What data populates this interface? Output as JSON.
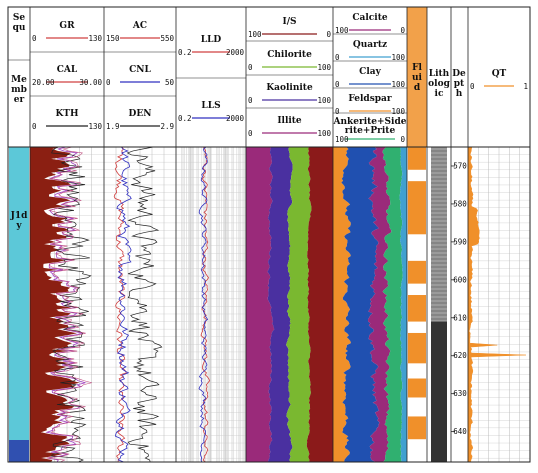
{
  "header": {
    "sequ": "Se\nqu",
    "member": "Me\nmb\ner",
    "fluid": "Fl\nui\nd",
    "lithologic": "Lith\nolog\nic",
    "depth": "De\npt\nh"
  },
  "zone_label": "J1d\ny",
  "curves_left": [
    {
      "name": "GR",
      "min": "0",
      "max": "130",
      "color": "#d04040"
    },
    {
      "name": "CAL",
      "min": "20.00",
      "max": "30.00",
      "color": "#d04040"
    },
    {
      "name": "KTH",
      "min": "0",
      "max": "130",
      "color": "#222222"
    }
  ],
  "curves_mid": [
    {
      "name": "AC",
      "min": "150",
      "max": "550",
      "color": "#d04040"
    },
    {
      "name": "CNL",
      "min": "0",
      "max": "50",
      "color": "#3030c0"
    },
    {
      "name": "DEN",
      "min": "1.9",
      "max": "2.9",
      "color": "#222222"
    }
  ],
  "curves_res": [
    {
      "name": "LLD",
      "min": "0.2",
      "max": "2000",
      "color": "#d04040"
    },
    {
      "name": "LLS",
      "min": "0.2",
      "max": "2000",
      "color": "#3030c0"
    }
  ],
  "clay_minerals": [
    {
      "name": "I/S",
      "min": "100",
      "max": "0",
      "color": "#8b1a1a"
    },
    {
      "name": "Chilorite",
      "min": "0",
      "max": "100",
      "color": "#7ab830"
    },
    {
      "name": "Kaolinite",
      "min": "0",
      "max": "100",
      "color": "#4a30a0"
    },
    {
      "name": "Illite",
      "min": "0",
      "max": "100",
      "color": "#9a2a7a"
    }
  ],
  "minerals": [
    {
      "name": "Calcite",
      "min": "100",
      "max": "0",
      "color": "#9a2a7a"
    },
    {
      "name": "Quartz",
      "min": "0",
      "max": "100",
      "color": "#40a0d0"
    },
    {
      "name": "Clay",
      "min": "0",
      "max": "100",
      "color": "#2050b0"
    },
    {
      "name": "Feldspar",
      "min": "0",
      "max": "100",
      "color": "#f0902a"
    },
    {
      "name": "Ankerite+Siderite+Prite",
      "min": "100",
      "max": "0",
      "color": "#30b070"
    }
  ],
  "qt": {
    "name": "QT",
    "min": "0",
    "max": "1",
    "color": "#f0902a"
  },
  "chart_data": {
    "type": "line",
    "depth_ticks": [
      570,
      580,
      590,
      600,
      610,
      620,
      630,
      640
    ],
    "depth_range": [
      565,
      648
    ]
  },
  "colors": {
    "grid": "#bbbbbb",
    "border": "#222222",
    "fluid": "#f0902a",
    "zone": "#5cc8d8",
    "zone_bottom": "#3050b0"
  }
}
